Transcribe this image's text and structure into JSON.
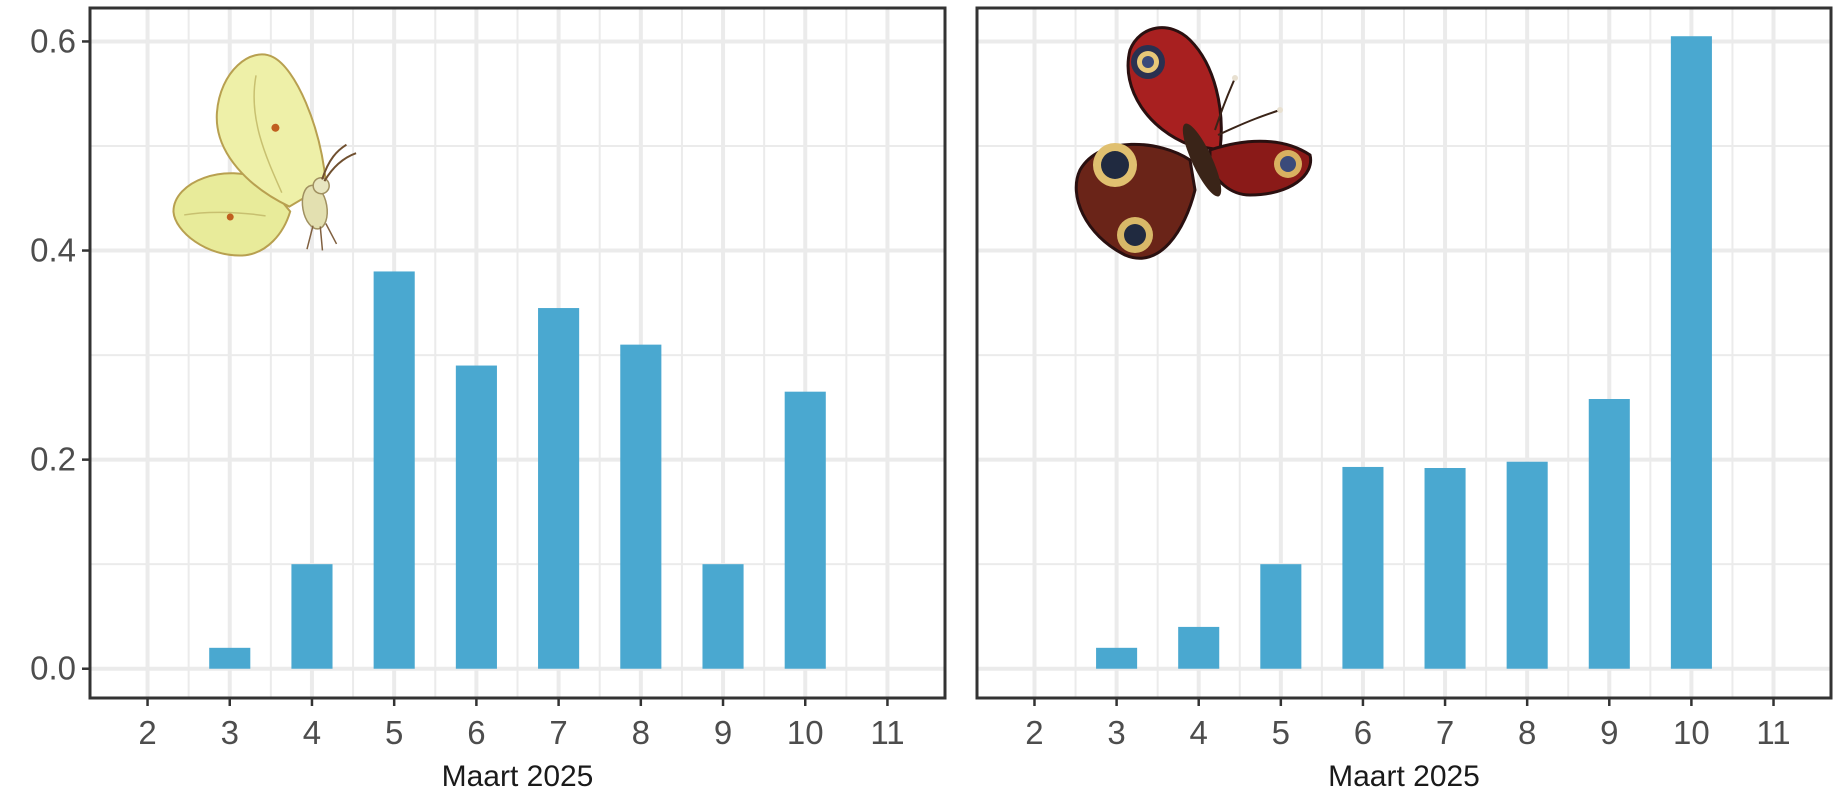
{
  "colors": {
    "bar": "#4aa8d0",
    "grid": "#ebebeb",
    "panel_border": "#333333",
    "tick_text": "#4d4d4d",
    "axis_title": "#1a1a1a"
  },
  "chart_data": [
    {
      "type": "bar",
      "title": "",
      "xlabel": "Maart 2025",
      "ylabel": "",
      "x": [
        2,
        3,
        4,
        5,
        6,
        7,
        8,
        9,
        10,
        11
      ],
      "values": [
        0,
        0.02,
        0.1,
        0.38,
        0.29,
        0.345,
        0.31,
        0.1,
        0.265,
        0
      ],
      "x_ticks": [
        "2",
        "3",
        "4",
        "5",
        "6",
        "7",
        "8",
        "9",
        "10",
        "11"
      ],
      "y_ticks": [
        "0.0",
        "0.2",
        "0.4",
        "0.6"
      ],
      "xlim": [
        1.3,
        11.7
      ],
      "ylim": [
        -0.028,
        0.632
      ],
      "grid": true,
      "illustration": "brimstone-butterfly"
    },
    {
      "type": "bar",
      "title": "",
      "xlabel": "Maart 2025",
      "ylabel": "",
      "x": [
        2,
        3,
        4,
        5,
        6,
        7,
        8,
        9,
        10,
        11
      ],
      "values": [
        0,
        0.02,
        0.04,
        0.1,
        0.193,
        0.192,
        0.198,
        0.258,
        0.605,
        0
      ],
      "x_ticks": [
        "2",
        "3",
        "4",
        "5",
        "6",
        "7",
        "8",
        "9",
        "10",
        "11"
      ],
      "y_ticks": [],
      "xlim": [
        1.3,
        11.7
      ],
      "ylim": [
        -0.028,
        0.632
      ],
      "grid": true,
      "illustration": "peacock-butterfly"
    }
  ]
}
